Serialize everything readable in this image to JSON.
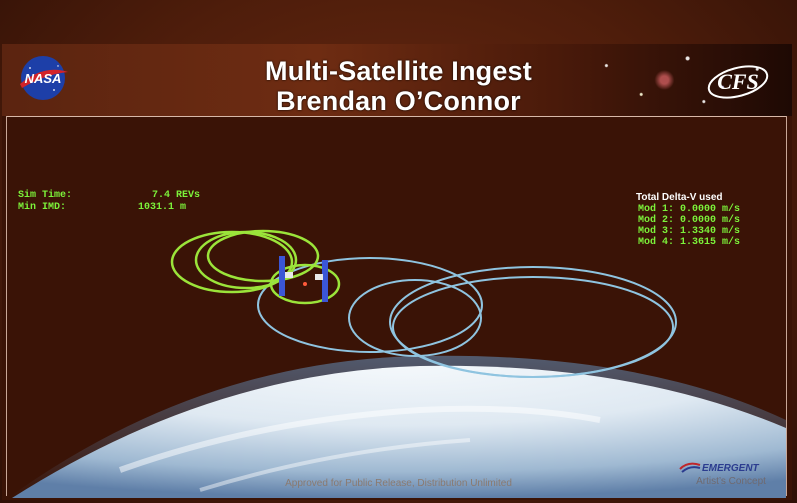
{
  "header": {
    "title_line1": "Multi-Satellite Ingest",
    "title_line2": "Brendan O’Connor",
    "left_logo_text": "NASA",
    "right_logo_text": "CFS"
  },
  "hud": {
    "sim_time_label": "Sim Time:",
    "sim_time_value": "7.4 REVs",
    "min_imd_label": "Min IMD:",
    "min_imd_value": "1031.1 m",
    "delta_v_title": "Total Delta-V used",
    "delta_v_rows": [
      "Mod 1:  0.0000 m/s",
      "Mod 2:  0.0000 m/s",
      "Mod 3:  1.3340 m/s",
      "Mod 4:  1.3615 m/s"
    ]
  },
  "footer": {
    "release_note": "Approved for Public Release, Distribution Unlimited",
    "company_logo_text": "EMERGENT",
    "caption": "Artist’s Concept"
  },
  "colors": {
    "orbit_green": "#9be43a",
    "orbit_blue": "#8fc4e0",
    "hud_green": "#7cf23a"
  },
  "icons": [
    "nasa-meatball-logo",
    "cfs-logo",
    "satellite-icon",
    "earth-limb",
    "emergent-logo"
  ]
}
